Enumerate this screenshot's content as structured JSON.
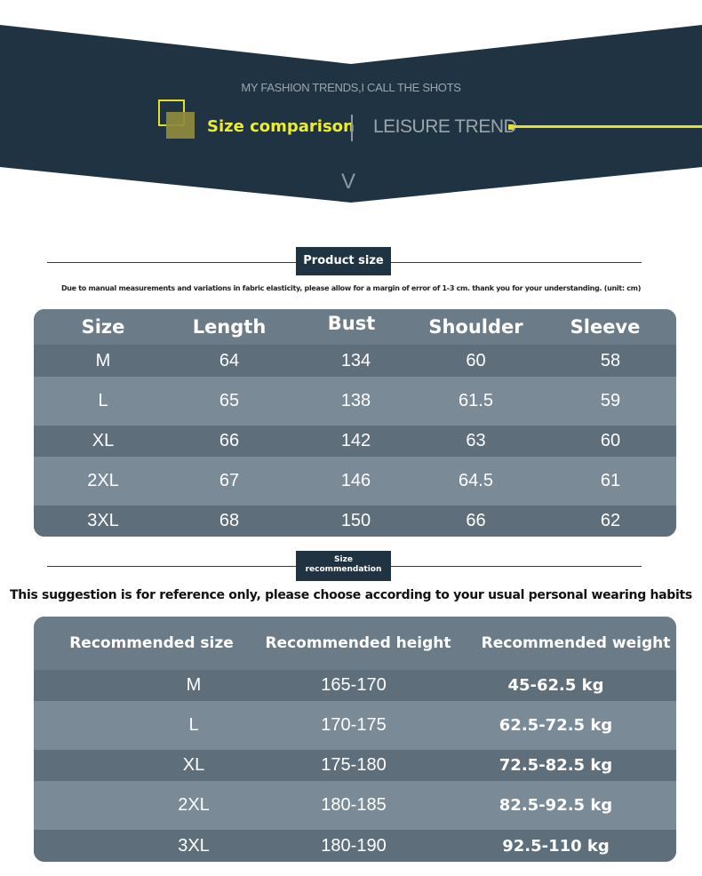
{
  "header": {
    "tagline": "MY FASHION TRENDS,I CALL THE SHOTS",
    "size_comparison": "Size comparison",
    "leisure_trend": "LEISURE TREND",
    "chevron": "V",
    "colors": {
      "banner": "#1f3342",
      "accent": "#e4e02a"
    }
  },
  "product_size": {
    "tag": "Product size",
    "note": "Due to manual measurements and variations in fabric elasticity, please allow for a margin of error of 1-3 cm. thank you for your understanding. (unit: cm)",
    "headers": [
      "Size",
      "Length",
      "Bust",
      "Shoulder",
      "Sleeve"
    ],
    "rows": [
      [
        "M",
        "64",
        "134",
        "60",
        "58"
      ],
      [
        "L",
        "65",
        "138",
        "61.5",
        "59"
      ],
      [
        "XL",
        "66",
        "142",
        "63",
        "60"
      ],
      [
        "2XL",
        "67",
        "146",
        "64.5",
        "61"
      ],
      [
        "3XL",
        "68",
        "150",
        "66",
        "62"
      ]
    ]
  },
  "recommendation": {
    "tag_line1": "Size",
    "tag_line2": "recommendation",
    "note": "This suggestion is for reference only, please choose according to your usual personal wearing habits",
    "headers": [
      "Recommended size",
      "Recommended height",
      "Recommended weight"
    ],
    "rows": [
      [
        "M",
        "165-170",
        "45-62.5 kg"
      ],
      [
        "L",
        "170-175",
        "62.5-72.5 kg"
      ],
      [
        "XL",
        "175-180",
        "72.5-82.5 kg"
      ],
      [
        "2XL",
        "180-185",
        "82.5-92.5 kg"
      ],
      [
        "3XL",
        "180-190",
        "92.5-110 kg"
      ]
    ]
  }
}
